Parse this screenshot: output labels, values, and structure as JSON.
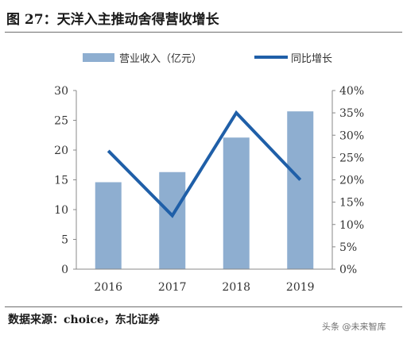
{
  "figure": {
    "title": "图 27：天洋入主推动舍得营收增长",
    "source": "数据来源：choice，东北证券",
    "watermark": "头条 @未来智库"
  },
  "chart_data": {
    "type": "bar",
    "categories": [
      "2016",
      "2017",
      "2018",
      "2019"
    ],
    "series": [
      {
        "name": "营业收入（亿元）",
        "type": "bar",
        "axis": "left",
        "color": "#8eaed0",
        "values": [
          14.6,
          16.3,
          22.1,
          26.5
        ]
      },
      {
        "name": "同比增长",
        "type": "line",
        "axis": "right",
        "color": "#1f5fa8",
        "values": [
          26.5,
          12.0,
          35.0,
          20.0
        ]
      }
    ],
    "y_left": {
      "min": 0,
      "max": 30,
      "ticks": [
        0,
        5,
        10,
        15,
        20,
        25,
        30
      ]
    },
    "y_right": {
      "min": 0,
      "max": 40,
      "ticks": [
        "0%",
        "5%",
        "10%",
        "15%",
        "20%",
        "25%",
        "30%",
        "35%",
        "40%"
      ]
    },
    "legend_position": "top",
    "grid": false
  }
}
